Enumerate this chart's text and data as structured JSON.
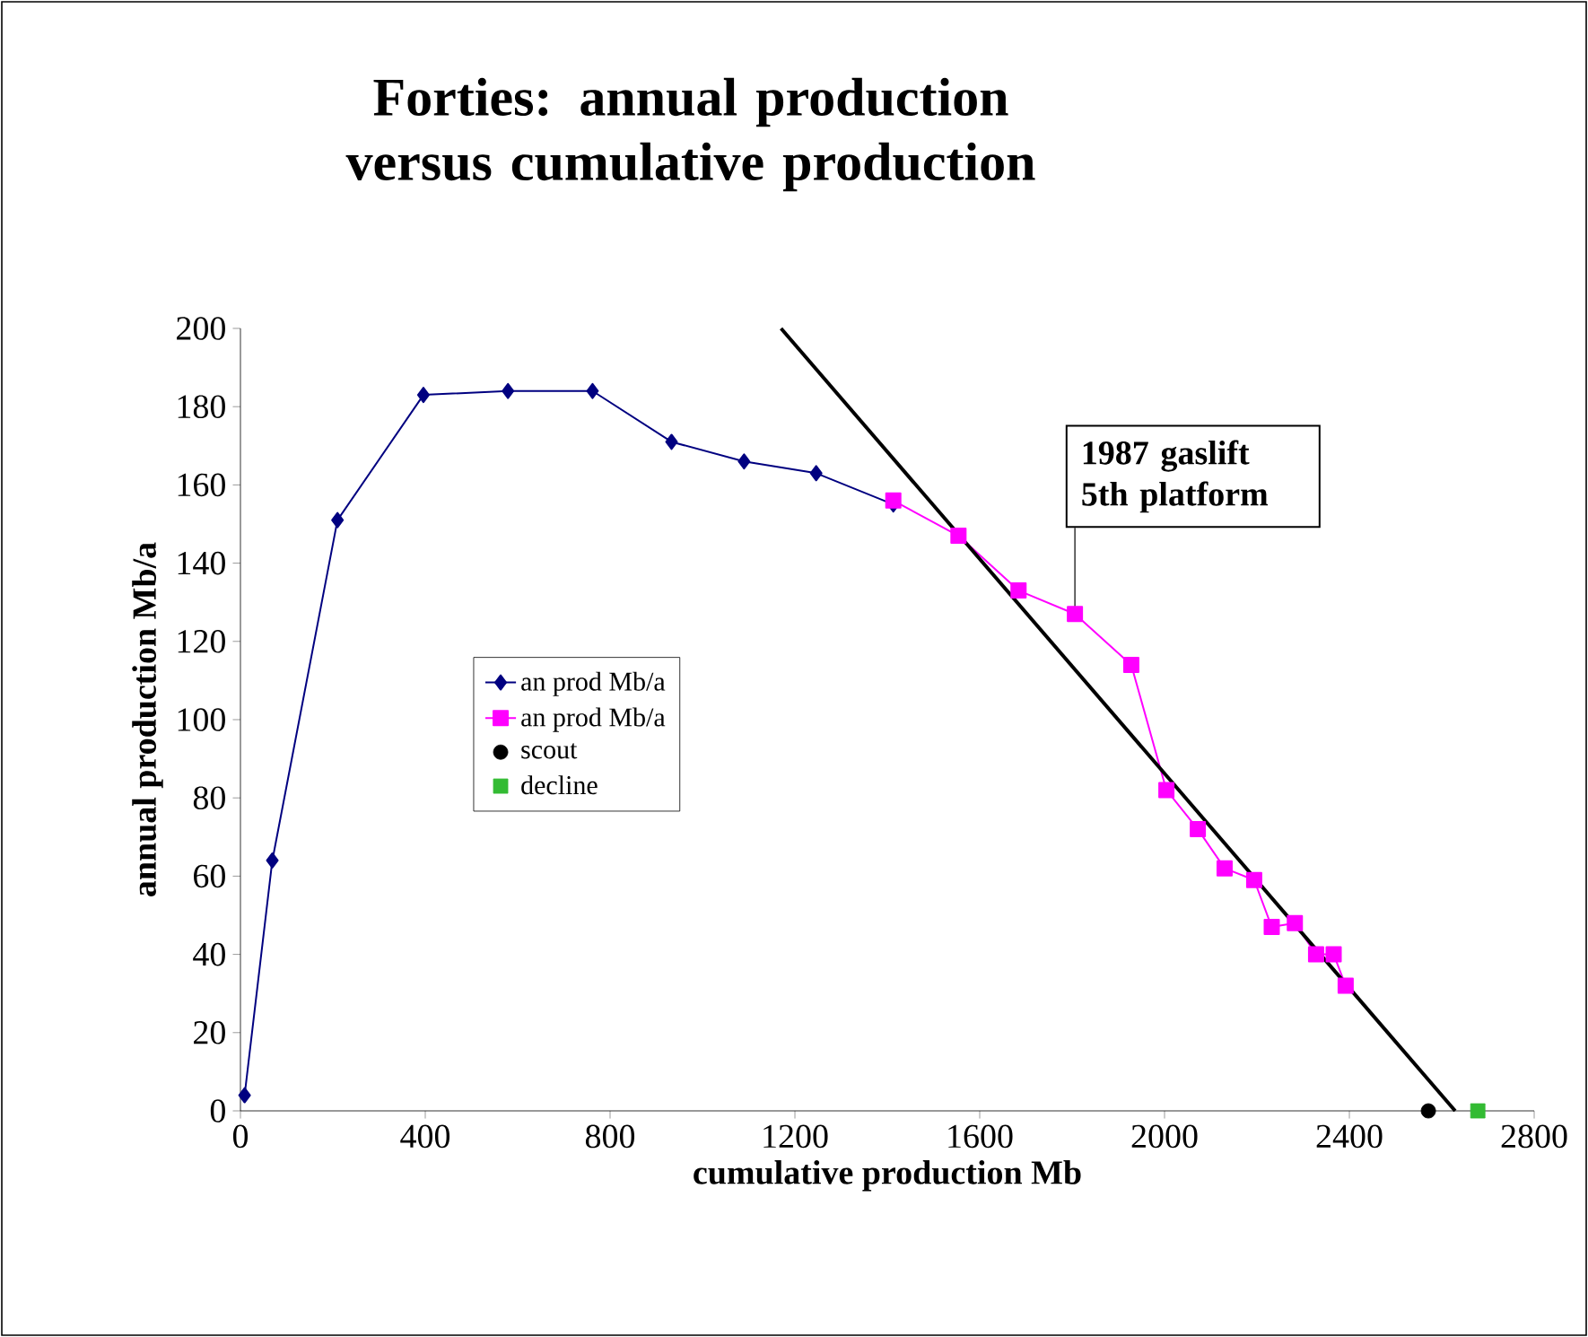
{
  "chart_data": {
    "type": "line",
    "title": "Forties: annual production versus cumulative production",
    "xlabel": "cumulative production Mb",
    "ylabel": "annual production Mb/a",
    "xlim": [
      0,
      2800
    ],
    "xticks": [
      0,
      400,
      800,
      1200,
      1600,
      2000,
      2400,
      2800
    ],
    "ylim": [
      0,
      200
    ],
    "yticks": [
      0,
      20,
      40,
      60,
      80,
      100,
      120,
      140,
      160,
      180,
      200
    ],
    "grid": false,
    "legend": "left",
    "series": [
      {
        "name": "an prod Mb/a",
        "color": "#000080",
        "marker": "diamond",
        "x": [
          9,
          69,
          210,
          396,
          579,
          762,
          933,
          1090,
          1246,
          1413
        ],
        "values": [
          4,
          64,
          151,
          183,
          184,
          184,
          171,
          166,
          163,
          155
        ]
      },
      {
        "name": "an prod Mb/a",
        "color": "#ff00ff",
        "marker": "square",
        "x": [
          1413,
          1554,
          1684,
          1806,
          1928,
          2004,
          2072,
          2130,
          2194,
          2232,
          2282,
          2328,
          2366,
          2392
        ],
        "values": [
          156,
          147,
          133,
          127,
          114,
          82,
          72,
          62,
          59,
          47,
          48,
          40,
          40,
          32
        ]
      },
      {
        "name": "scout",
        "type": "scatter",
        "color": "#000000",
        "marker": "circle",
        "x": [
          2571
        ],
        "values": [
          0
        ]
      },
      {
        "name": "decline",
        "type": "scatter",
        "color": "#33bb33",
        "marker": "square",
        "x": [
          2678
        ],
        "values": [
          0
        ]
      },
      {
        "type": "line",
        "color": "#000000",
        "marker": "none",
        "x": [
          1170,
          2629
        ],
        "values": [
          200,
          0
        ]
      }
    ],
    "annotations": [
      {
        "text": "1987 gaslift 5th platform",
        "x": 1806,
        "y": 127
      }
    ]
  }
}
